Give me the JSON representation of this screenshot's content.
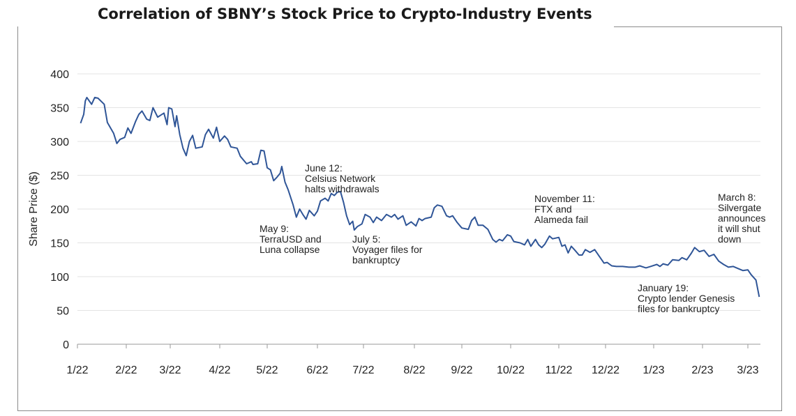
{
  "chart_data": {
    "type": "line",
    "title": "Correlation of SBNY’s Stock Price to Crypto-Industry Events",
    "xlabel": "",
    "ylabel": "Share Price ($)",
    "ylim": [
      0,
      400
    ],
    "yticks": [
      0,
      50,
      100,
      150,
      200,
      250,
      300,
      350,
      400
    ],
    "grid": "horizontal",
    "x_tick_labels": [
      "1/22",
      "2/22",
      "3/22",
      "4/22",
      "5/22",
      "6/22",
      "7/22",
      "8/22",
      "9/22",
      "10/22",
      "11/22",
      "12/22",
      "1/23",
      "2/23",
      "3/23"
    ],
    "x_tick_dates": [
      "2022-01-01",
      "2022-02-01",
      "2022-03-01",
      "2022-04-01",
      "2022-05-01",
      "2022-06-01",
      "2022-07-01",
      "2022-08-01",
      "2022-09-01",
      "2022-10-01",
      "2022-11-01",
      "2022-12-01",
      "2023-01-01",
      "2023-02-01",
      "2023-03-01"
    ],
    "series": [
      {
        "color": "#2f5597",
        "points": [
          [
            "2022-01-03",
            327
          ],
          [
            "2022-01-05",
            340
          ],
          [
            "2022-01-06",
            360
          ],
          [
            "2022-01-07",
            365
          ],
          [
            "2022-01-10",
            355
          ],
          [
            "2022-01-12",
            365
          ],
          [
            "2022-01-14",
            364
          ],
          [
            "2022-01-18",
            355
          ],
          [
            "2022-01-20",
            328
          ],
          [
            "2022-01-24",
            312
          ],
          [
            "2022-01-26",
            297
          ],
          [
            "2022-01-28",
            303
          ],
          [
            "2022-01-31",
            306
          ],
          [
            "2022-02-02",
            320
          ],
          [
            "2022-02-04",
            312
          ],
          [
            "2022-02-07",
            330
          ],
          [
            "2022-02-09",
            340
          ],
          [
            "2022-02-11",
            345
          ],
          [
            "2022-02-14",
            333
          ],
          [
            "2022-02-16",
            331
          ],
          [
            "2022-02-18",
            350
          ],
          [
            "2022-02-21",
            336
          ],
          [
            "2022-02-23",
            339
          ],
          [
            "2022-02-25",
            342
          ],
          [
            "2022-02-27",
            325
          ],
          [
            "2022-02-28",
            350
          ],
          [
            "2022-03-02",
            348
          ],
          [
            "2022-03-04",
            322
          ],
          [
            "2022-03-05",
            338
          ],
          [
            "2022-03-07",
            310
          ],
          [
            "2022-03-09",
            290
          ],
          [
            "2022-03-11",
            279
          ],
          [
            "2022-03-13",
            300
          ],
          [
            "2022-03-15",
            309
          ],
          [
            "2022-03-17",
            290
          ],
          [
            "2022-03-21",
            292
          ],
          [
            "2022-03-23",
            310
          ],
          [
            "2022-03-25",
            318
          ],
          [
            "2022-03-28",
            305
          ],
          [
            "2022-03-30",
            321
          ],
          [
            "2022-04-01",
            300
          ],
          [
            "2022-04-04",
            308
          ],
          [
            "2022-04-06",
            303
          ],
          [
            "2022-04-08",
            292
          ],
          [
            "2022-04-12",
            290
          ],
          [
            "2022-04-14",
            278
          ],
          [
            "2022-04-18",
            267
          ],
          [
            "2022-04-21",
            270
          ],
          [
            "2022-04-22",
            266
          ],
          [
            "2022-04-25",
            267
          ],
          [
            "2022-04-27",
            287
          ],
          [
            "2022-04-29",
            286
          ],
          [
            "2022-05-01",
            261
          ],
          [
            "2022-05-03",
            258
          ],
          [
            "2022-05-05",
            242
          ],
          [
            "2022-05-07",
            247
          ],
          [
            "2022-05-09",
            253
          ],
          [
            "2022-05-10",
            263
          ],
          [
            "2022-05-12",
            240
          ],
          [
            "2022-05-14",
            228
          ],
          [
            "2022-05-17",
            206
          ],
          [
            "2022-05-19",
            188
          ],
          [
            "2022-05-21",
            200
          ],
          [
            "2022-05-23",
            192
          ],
          [
            "2022-05-25",
            185
          ],
          [
            "2022-05-27",
            198
          ],
          [
            "2022-05-30",
            190
          ],
          [
            "2022-06-01",
            197
          ],
          [
            "2022-06-03",
            212
          ],
          [
            "2022-06-06",
            216
          ],
          [
            "2022-06-08",
            212
          ],
          [
            "2022-06-10",
            223
          ],
          [
            "2022-06-12",
            220
          ],
          [
            "2022-06-14",
            225
          ],
          [
            "2022-06-16",
            226
          ],
          [
            "2022-06-18",
            210
          ],
          [
            "2022-06-20",
            190
          ],
          [
            "2022-06-22",
            177
          ],
          [
            "2022-06-24",
            182
          ],
          [
            "2022-06-25",
            169
          ],
          [
            "2022-06-27",
            174
          ],
          [
            "2022-06-30",
            178
          ],
          [
            "2022-07-02",
            192
          ],
          [
            "2022-07-05",
            188
          ],
          [
            "2022-07-07",
            180
          ],
          [
            "2022-07-09",
            188
          ],
          [
            "2022-07-12",
            183
          ],
          [
            "2022-07-15",
            192
          ],
          [
            "2022-07-18",
            188
          ],
          [
            "2022-07-20",
            192
          ],
          [
            "2022-07-22",
            185
          ],
          [
            "2022-07-25",
            190
          ],
          [
            "2022-07-27",
            176
          ],
          [
            "2022-07-30",
            181
          ],
          [
            "2022-08-02",
            175
          ],
          [
            "2022-08-04",
            186
          ],
          [
            "2022-08-06",
            183
          ],
          [
            "2022-08-08",
            186
          ],
          [
            "2022-08-12",
            188
          ],
          [
            "2022-08-14",
            202
          ],
          [
            "2022-08-16",
            206
          ],
          [
            "2022-08-19",
            204
          ],
          [
            "2022-08-22",
            190
          ],
          [
            "2022-08-24",
            188
          ],
          [
            "2022-08-26",
            190
          ],
          [
            "2022-08-29",
            180
          ],
          [
            "2022-09-01",
            172
          ],
          [
            "2022-09-05",
            170
          ],
          [
            "2022-09-07",
            183
          ],
          [
            "2022-09-09",
            188
          ],
          [
            "2022-09-11",
            176
          ],
          [
            "2022-09-14",
            176
          ],
          [
            "2022-09-17",
            170
          ],
          [
            "2022-09-20",
            155
          ],
          [
            "2022-09-22",
            151
          ],
          [
            "2022-09-24",
            155
          ],
          [
            "2022-09-26",
            153
          ],
          [
            "2022-09-29",
            162
          ],
          [
            "2022-10-01",
            160
          ],
          [
            "2022-10-03",
            152
          ],
          [
            "2022-10-07",
            150
          ],
          [
            "2022-10-10",
            147
          ],
          [
            "2022-10-12",
            155
          ],
          [
            "2022-10-14",
            145
          ],
          [
            "2022-10-17",
            155
          ],
          [
            "2022-10-19",
            147
          ],
          [
            "2022-10-21",
            143
          ],
          [
            "2022-10-23",
            148
          ],
          [
            "2022-10-26",
            160
          ],
          [
            "2022-10-28",
            156
          ],
          [
            "2022-11-01",
            158
          ],
          [
            "2022-11-03",
            145
          ],
          [
            "2022-11-05",
            147
          ],
          [
            "2022-11-07",
            135
          ],
          [
            "2022-11-09",
            145
          ],
          [
            "2022-11-11",
            140
          ],
          [
            "2022-11-14",
            132
          ],
          [
            "2022-11-16",
            132
          ],
          [
            "2022-11-18",
            140
          ],
          [
            "2022-11-21",
            136
          ],
          [
            "2022-11-24",
            140
          ],
          [
            "2022-11-27",
            130
          ],
          [
            "2022-11-30",
            120
          ],
          [
            "2022-12-02",
            121
          ],
          [
            "2022-12-05",
            116
          ],
          [
            "2022-12-08",
            115
          ],
          [
            "2022-12-12",
            115
          ],
          [
            "2022-12-16",
            114
          ],
          [
            "2022-12-20",
            114
          ],
          [
            "2022-12-23",
            116
          ],
          [
            "2022-12-27",
            113
          ],
          [
            "2022-12-30",
            115
          ],
          [
            "2023-01-03",
            118
          ],
          [
            "2023-01-05",
            115
          ],
          [
            "2023-01-07",
            119
          ],
          [
            "2023-01-10",
            117
          ],
          [
            "2023-01-13",
            125
          ],
          [
            "2023-01-17",
            124
          ],
          [
            "2023-01-19",
            128
          ],
          [
            "2023-01-22",
            125
          ],
          [
            "2023-01-25",
            135
          ],
          [
            "2023-01-27",
            143
          ],
          [
            "2023-01-30",
            137
          ],
          [
            "2023-02-02",
            139
          ],
          [
            "2023-02-05",
            130
          ],
          [
            "2023-02-08",
            133
          ],
          [
            "2023-02-11",
            123
          ],
          [
            "2023-02-14",
            118
          ],
          [
            "2023-02-17",
            114
          ],
          [
            "2023-02-20",
            115
          ],
          [
            "2023-02-23",
            112
          ],
          [
            "2023-02-26",
            109
          ],
          [
            "2023-03-01",
            110
          ],
          [
            "2023-03-03",
            103
          ],
          [
            "2023-03-06",
            95
          ],
          [
            "2023-03-08",
            70
          ]
        ]
      }
    ],
    "annotations": [
      {
        "lines": [
          "May 9:",
          "TerraUSD and",
          "Luna collapse"
        ]
      },
      {
        "lines": [
          "June 12:",
          "Celsius Network",
          "halts withdrawals"
        ]
      },
      {
        "lines": [
          "July 5:",
          "Voyager files for",
          "bankruptcy"
        ]
      },
      {
        "lines": [
          "November 11:",
          "FTX and",
          "Alameda fail"
        ]
      },
      {
        "lines": [
          "January 19:",
          "Crypto lender Genesis",
          "files for bankruptcy"
        ]
      },
      {
        "lines": [
          "March 8:",
          "Silvergate",
          "announces",
          "it will shut",
          "down"
        ]
      }
    ]
  }
}
